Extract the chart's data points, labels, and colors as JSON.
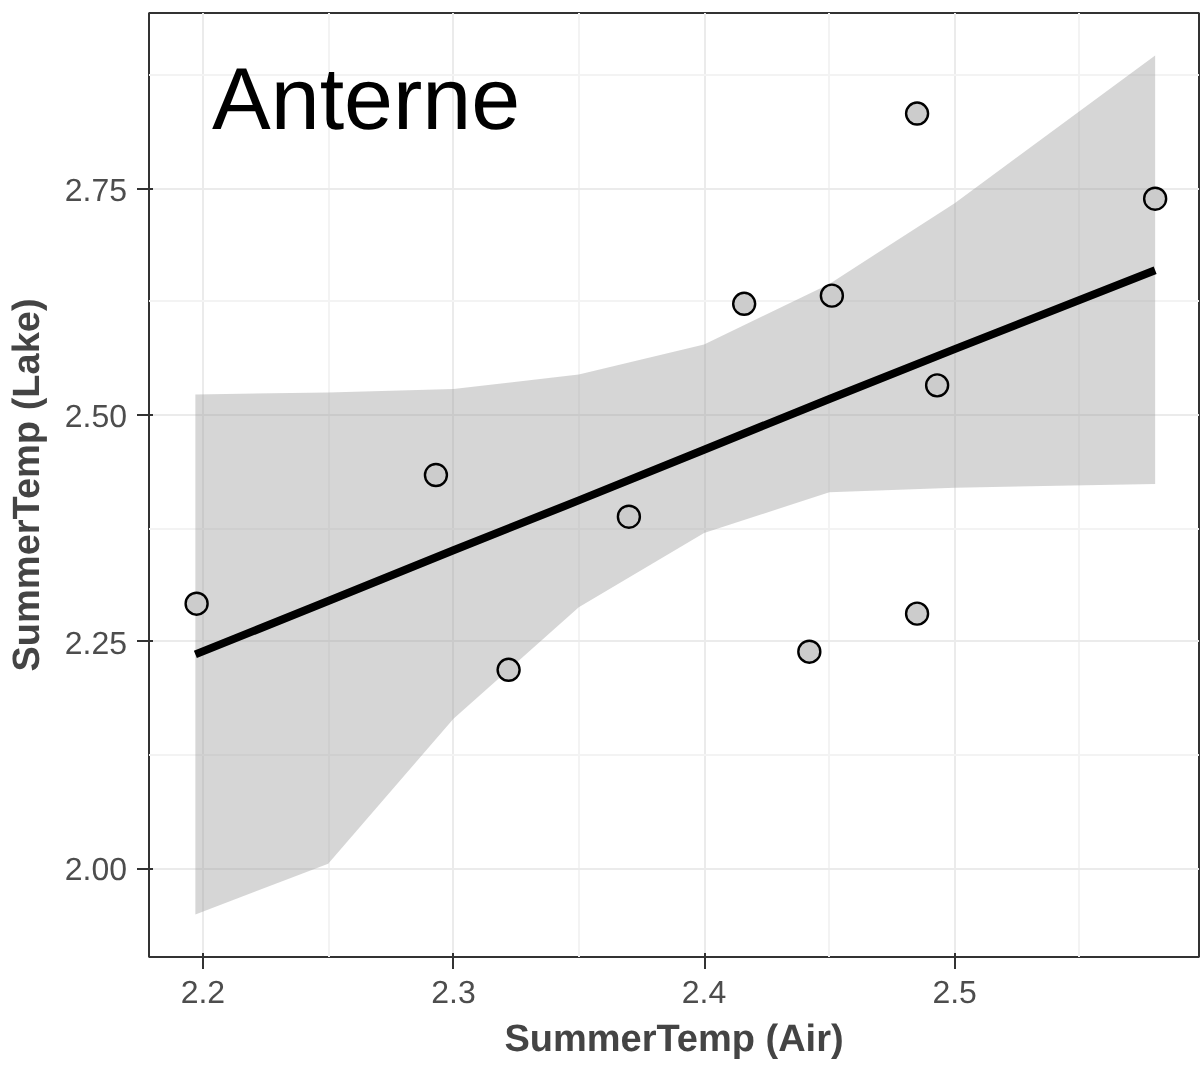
{
  "chart_data": {
    "type": "scatter",
    "xlabel": "SummerTemp (Air)",
    "ylabel": "SummerTemp (Lake)",
    "annotations": [
      "Anterne"
    ],
    "xlim": [
      2.1785,
      2.5975
    ],
    "ylim": [
      1.902,
      2.944
    ],
    "xticks": [
      2.2,
      2.3,
      2.4,
      2.5
    ],
    "yticks": [
      {
        "value": 2.0,
        "label": "2.00"
      },
      {
        "value": 2.25,
        "label": "2.25"
      },
      {
        "value": 2.5,
        "label": "2.50"
      },
      {
        "value": 2.75,
        "label": "2.75"
      }
    ],
    "grid": true,
    "marker": "circle",
    "series": [
      {
        "type": "line",
        "marker": "none",
        "color": "#000000",
        "x": [
          2.197,
          2.25,
          2.3,
          2.35,
          2.4,
          2.45,
          2.5,
          2.58
        ],
        "values": [
          2.236,
          2.295,
          2.351,
          2.406,
          2.462,
          2.518,
          2.573,
          2.66
        ],
        "lower": [
          1.949,
          2.005,
          2.165,
          2.288,
          2.37,
          2.415,
          2.42,
          2.424
        ],
        "upper": [
          2.523,
          2.525,
          2.529,
          2.545,
          2.578,
          2.645,
          2.734,
          2.897
        ]
      },
      {
        "color": "#cccccc",
        "x": [
          2.1975,
          2.293,
          2.322,
          2.37,
          2.416,
          2.451,
          2.442,
          2.485,
          2.485,
          2.493,
          2.58
        ],
        "values": [
          2.292,
          2.434,
          2.219,
          2.388,
          2.623,
          2.632,
          2.239,
          2.833,
          2.281,
          2.533,
          2.739
        ]
      }
    ]
  }
}
